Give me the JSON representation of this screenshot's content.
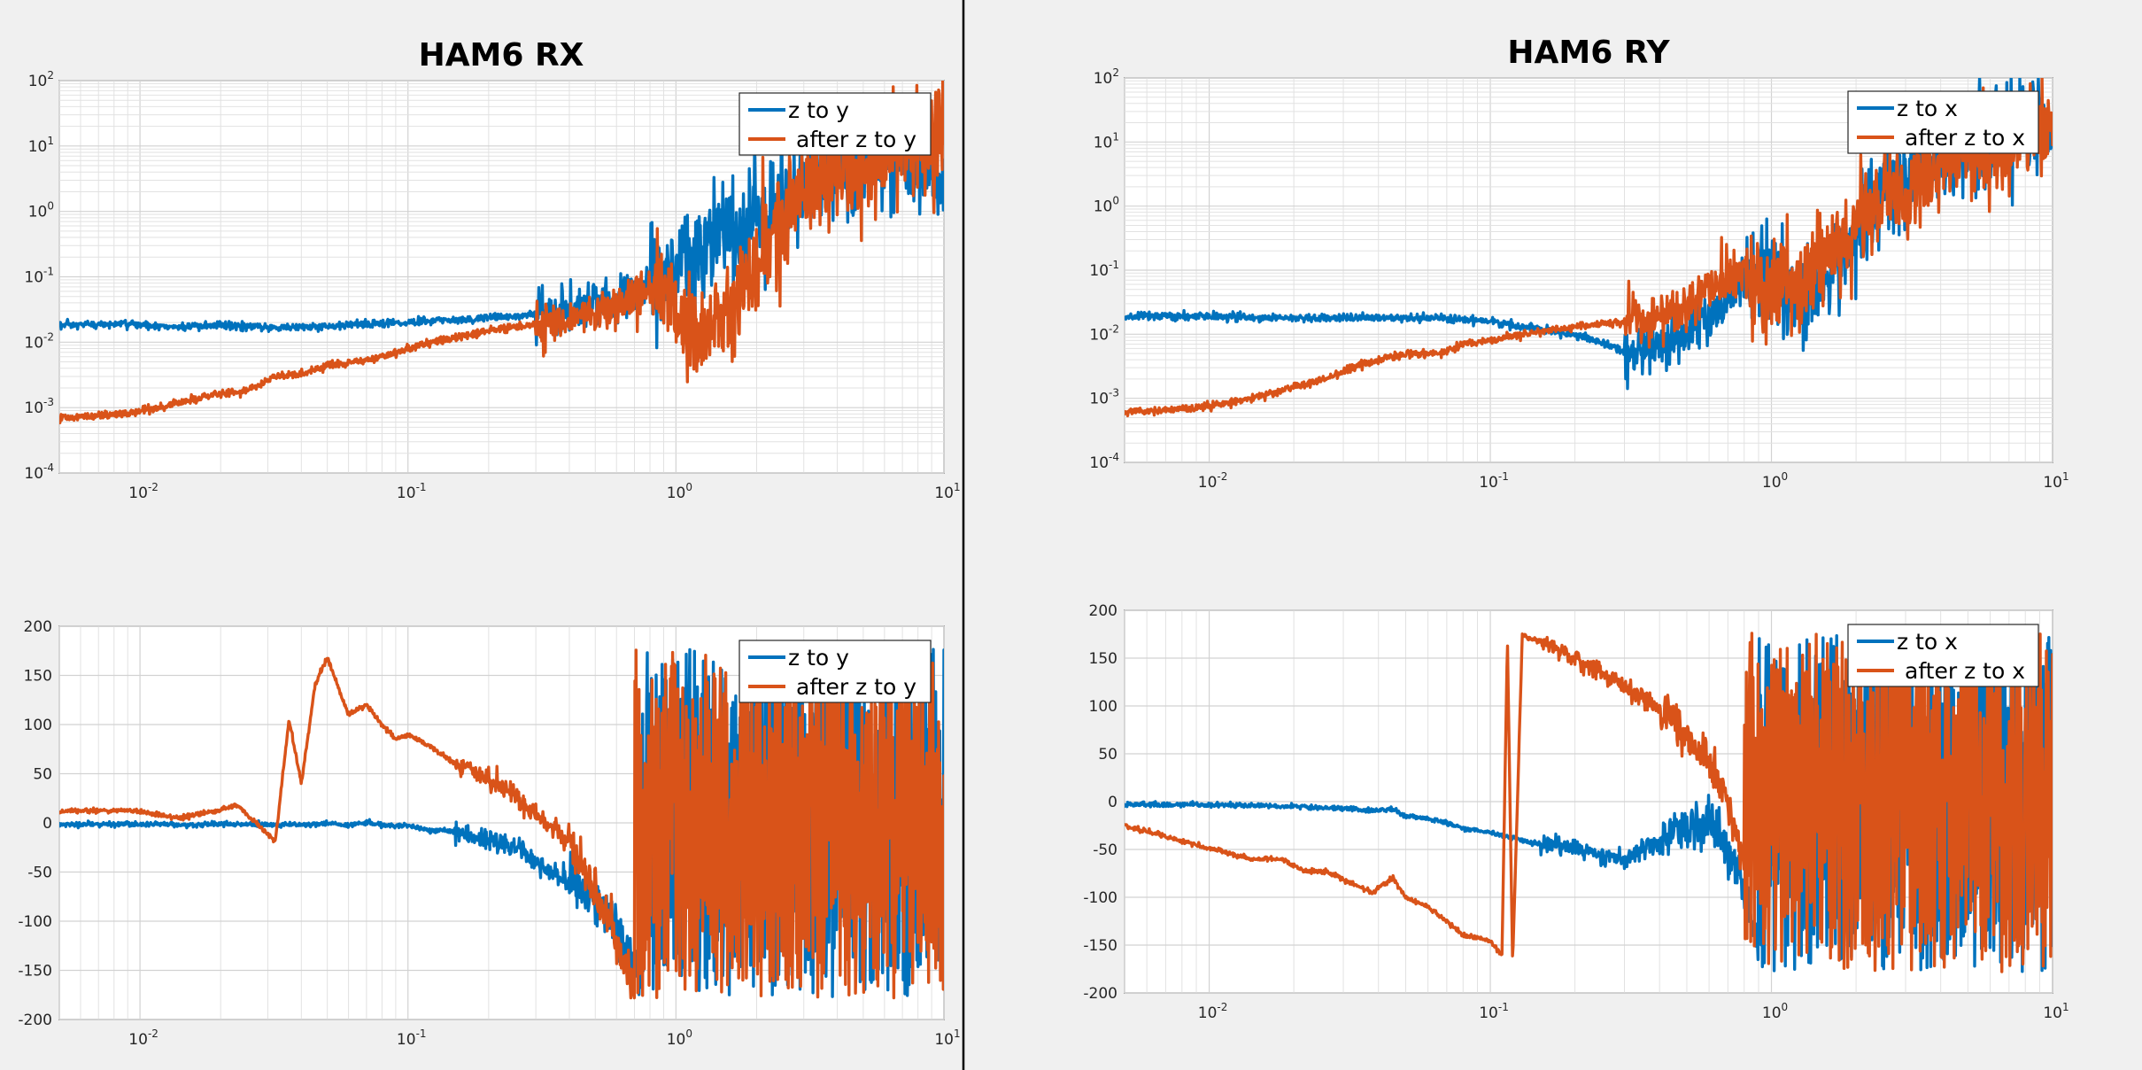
{
  "colors": {
    "blue": "#0072bd",
    "orange": "#d95319",
    "divider": "#000000",
    "background": "#f0f0f0"
  },
  "chart_data": [
    {
      "id": "rx_mag",
      "type": "line",
      "title": "HAM6 RX",
      "xscale": "log",
      "yscale": "log",
      "xlim": [
        0.005,
        10
      ],
      "ylim": [
        0.0001,
        100
      ],
      "grid": true,
      "legend_position": "top-right",
      "xticks": [
        {
          "v": 0.01,
          "base": "10",
          "exp": "-2"
        },
        {
          "v": 0.1,
          "base": "10",
          "exp": "-1"
        },
        {
          "v": 1,
          "base": "10",
          "exp": "0"
        },
        {
          "v": 10,
          "base": "10",
          "exp": "1"
        }
      ],
      "yticks": [
        {
          "v": 0.0001,
          "base": "10",
          "exp": "-4"
        },
        {
          "v": 0.001,
          "base": "10",
          "exp": "-3"
        },
        {
          "v": 0.01,
          "base": "10",
          "exp": "-2"
        },
        {
          "v": 0.1,
          "base": "10",
          "exp": "-1"
        },
        {
          "v": 1,
          "base": "10",
          "exp": "0"
        },
        {
          "v": 10,
          "base": "10",
          "exp": "1"
        },
        {
          "v": 100,
          "base": "10",
          "exp": "2"
        }
      ],
      "series": [
        {
          "name": "z to y",
          "color": "#0072bd",
          "x": [
            0.005,
            0.009,
            0.014,
            0.02,
            0.03,
            0.045,
            0.065,
            0.1,
            0.15,
            0.25,
            0.4,
            0.6,
            0.8,
            1.0,
            1.3,
            1.6,
            2.0,
            2.5,
            3.0,
            4.0,
            5.0,
            6.5,
            8.0,
            10.0
          ],
          "y": [
            0.018,
            0.019,
            0.017,
            0.018,
            0.017,
            0.017,
            0.019,
            0.02,
            0.022,
            0.025,
            0.03,
            0.045,
            0.08,
            0.15,
            0.3,
            0.5,
            0.7,
            1.5,
            3.0,
            5.0,
            6.0,
            8.0,
            5.0,
            3.0
          ]
        },
        {
          "name": "after z to y",
          "color": "#d95319",
          "x": [
            0.005,
            0.009,
            0.014,
            0.02,
            0.026,
            0.032,
            0.04,
            0.05,
            0.065,
            0.08,
            0.1,
            0.15,
            0.25,
            0.4,
            0.6,
            0.8,
            1.0,
            1.3,
            1.6,
            2.0,
            2.5,
            3.0,
            4.0,
            5.0,
            6.5,
            8.0,
            10.0
          ],
          "y": [
            0.0007,
            0.0008,
            0.0012,
            0.0016,
            0.0019,
            0.003,
            0.0032,
            0.0045,
            0.005,
            0.006,
            0.008,
            0.012,
            0.017,
            0.022,
            0.035,
            0.07,
            0.03,
            0.012,
            0.03,
            0.15,
            0.8,
            2.0,
            4.0,
            6.0,
            8.0,
            15.0,
            20.0
          ]
        }
      ]
    },
    {
      "id": "rx_phase",
      "type": "line",
      "title": "",
      "xscale": "log",
      "yscale": "linear",
      "xlim": [
        0.005,
        10
      ],
      "ylim": [
        -200,
        200
      ],
      "grid": true,
      "legend_position": "top-right",
      "xticks": [
        {
          "v": 0.01,
          "base": "10",
          "exp": "-2"
        },
        {
          "v": 0.1,
          "base": "10",
          "exp": "-1"
        },
        {
          "v": 1,
          "base": "10",
          "exp": "0"
        },
        {
          "v": 10,
          "base": "10",
          "exp": "1"
        }
      ],
      "yticks": [
        {
          "v": -200,
          "label": "-200"
        },
        {
          "v": -150,
          "label": "-150"
        },
        {
          "v": -100,
          "label": "-100"
        },
        {
          "v": -50,
          "label": "-50"
        },
        {
          "v": 0,
          "label": "0"
        },
        {
          "v": 50,
          "label": "50"
        },
        {
          "v": 100,
          "label": "100"
        },
        {
          "v": 150,
          "label": "150"
        },
        {
          "v": 200,
          "label": "200"
        }
      ],
      "series": [
        {
          "name": "z to y",
          "color": "#0072bd",
          "x": [
            0.005,
            0.009,
            0.014,
            0.02,
            0.03,
            0.04,
            0.05,
            0.06,
            0.07,
            0.08,
            0.1,
            0.12,
            0.15,
            0.2,
            0.25,
            0.3,
            0.4,
            0.5,
            0.6,
            0.7,
            0.75
          ],
          "y": [
            -2,
            -1,
            -2,
            -1,
            -2,
            -2,
            0,
            -3,
            1,
            -3,
            -3,
            -8,
            -8,
            -18,
            -25,
            -40,
            -60,
            -80,
            -110,
            -140,
            -160
          ]
        },
        {
          "name": "after z to y",
          "color": "#d95319",
          "x": [
            0.005,
            0.009,
            0.014,
            0.02,
            0.023,
            0.027,
            0.032,
            0.036,
            0.04,
            0.045,
            0.05,
            0.06,
            0.07,
            0.08,
            0.09,
            0.1,
            0.12,
            0.15,
            0.2,
            0.25,
            0.3,
            0.4,
            0.5,
            0.6,
            0.7
          ],
          "y": [
            12,
            13,
            5,
            13,
            18,
            0,
            -18,
            105,
            40,
            140,
            168,
            110,
            120,
            100,
            85,
            90,
            78,
            60,
            45,
            30,
            10,
            -20,
            -70,
            -120,
            -170
          ]
        }
      ]
    },
    {
      "id": "ry_mag",
      "type": "line",
      "title": "HAM6 RY",
      "xscale": "log",
      "yscale": "log",
      "xlim": [
        0.005,
        10
      ],
      "ylim": [
        0.0001,
        100
      ],
      "grid": true,
      "legend_position": "top-right",
      "xticks": [
        {
          "v": 0.01,
          "base": "10",
          "exp": "-2"
        },
        {
          "v": 0.1,
          "base": "10",
          "exp": "-1"
        },
        {
          "v": 1,
          "base": "10",
          "exp": "0"
        },
        {
          "v": 10,
          "base": "10",
          "exp": "1"
        }
      ],
      "yticks": [
        {
          "v": 0.0001,
          "base": "10",
          "exp": "-4"
        },
        {
          "v": 0.001,
          "base": "10",
          "exp": "-3"
        },
        {
          "v": 0.01,
          "base": "10",
          "exp": "-2"
        },
        {
          "v": 0.1,
          "base": "10",
          "exp": "-1"
        },
        {
          "v": 1,
          "base": "10",
          "exp": "0"
        },
        {
          "v": 10,
          "base": "10",
          "exp": "1"
        },
        {
          "v": 100,
          "base": "10",
          "exp": "2"
        }
      ],
      "series": [
        {
          "name": "z to x",
          "color": "#0072bd",
          "x": [
            0.005,
            0.009,
            0.014,
            0.02,
            0.03,
            0.045,
            0.065,
            0.1,
            0.13,
            0.17,
            0.22,
            0.28,
            0.32,
            0.4,
            0.5,
            0.6,
            0.75,
            0.9,
            1.0,
            1.3,
            1.6,
            2.0,
            2.5,
            3.0,
            4.0,
            5.0,
            6.5,
            8.0,
            10.0
          ],
          "y": [
            0.019,
            0.019,
            0.018,
            0.018,
            0.018,
            0.018,
            0.018,
            0.016,
            0.013,
            0.011,
            0.009,
            0.006,
            0.004,
            0.007,
            0.01,
            0.02,
            0.05,
            0.1,
            0.06,
            0.04,
            0.1,
            0.4,
            1.5,
            3.0,
            6.0,
            8.0,
            10.0,
            20.0,
            15.0
          ]
        },
        {
          "name": "after z to x",
          "color": "#d95319",
          "x": [
            0.005,
            0.009,
            0.014,
            0.02,
            0.026,
            0.032,
            0.04,
            0.05,
            0.065,
            0.08,
            0.1,
            0.15,
            0.2,
            0.3,
            0.4,
            0.5,
            0.6,
            0.8,
            1.0,
            1.3,
            1.6,
            2.0,
            2.5,
            3.0,
            4.0,
            5.0,
            6.5,
            8.0,
            10.0
          ],
          "y": [
            0.0006,
            0.0007,
            0.001,
            0.0015,
            0.002,
            0.003,
            0.004,
            0.005,
            0.005,
            0.007,
            0.008,
            0.011,
            0.013,
            0.016,
            0.02,
            0.03,
            0.05,
            0.1,
            0.05,
            0.06,
            0.2,
            0.5,
            1.0,
            2.0,
            4.0,
            6.0,
            8.0,
            15.0,
            20.0
          ]
        }
      ]
    },
    {
      "id": "ry_phase",
      "type": "line",
      "title": "",
      "xscale": "log",
      "yscale": "linear",
      "xlim": [
        0.005,
        10
      ],
      "ylim": [
        -200,
        200
      ],
      "grid": true,
      "legend_position": "top-right",
      "xticks": [
        {
          "v": 0.01,
          "base": "10",
          "exp": "-2"
        },
        {
          "v": 0.1,
          "base": "10",
          "exp": "-1"
        },
        {
          "v": 1,
          "base": "10",
          "exp": "0"
        },
        {
          "v": 10,
          "base": "10",
          "exp": "1"
        }
      ],
      "yticks": [
        {
          "v": -200,
          "label": "-200"
        },
        {
          "v": -150,
          "label": "-150"
        },
        {
          "v": -100,
          "label": "-100"
        },
        {
          "v": -50,
          "label": "-50"
        },
        {
          "v": 0,
          "label": "0"
        },
        {
          "v": 50,
          "label": "50"
        },
        {
          "v": 100,
          "label": "100"
        },
        {
          "v": 150,
          "label": "150"
        },
        {
          "v": 200,
          "label": "200"
        }
      ],
      "series": [
        {
          "name": "z to x",
          "color": "#0072bd",
          "x": [
            0.005,
            0.009,
            0.014,
            0.02,
            0.03,
            0.04,
            0.045,
            0.05,
            0.06,
            0.07,
            0.08,
            0.1,
            0.12,
            0.15,
            0.2,
            0.25,
            0.3,
            0.4,
            0.5,
            0.6,
            0.7,
            0.8,
            0.9
          ],
          "y": [
            -3,
            -3,
            -4,
            -5,
            -7,
            -10,
            -8,
            -15,
            -18,
            -22,
            -28,
            -32,
            -38,
            -45,
            -50,
            -55,
            -60,
            -40,
            -30,
            -20,
            -50,
            -100,
            -150
          ]
        },
        {
          "name": "after z to x",
          "color": "#d95319",
          "x": [
            0.005,
            0.009,
            0.014,
            0.018,
            0.022,
            0.026,
            0.032,
            0.038,
            0.045,
            0.05,
            0.06,
            0.07,
            0.08,
            0.1,
            0.11,
            0.115,
            0.12,
            0.13,
            0.14,
            0.16,
            0.2,
            0.25,
            0.3,
            0.4,
            0.5,
            0.6,
            0.7,
            0.8
          ],
          "y": [
            -25,
            -45,
            -60,
            -60,
            -73,
            -73,
            -85,
            -95,
            -80,
            -100,
            -110,
            -125,
            -140,
            -145,
            -160,
            170,
            -170,
            175,
            170,
            165,
            150,
            135,
            120,
            100,
            70,
            40,
            0,
            -60
          ]
        }
      ]
    }
  ]
}
